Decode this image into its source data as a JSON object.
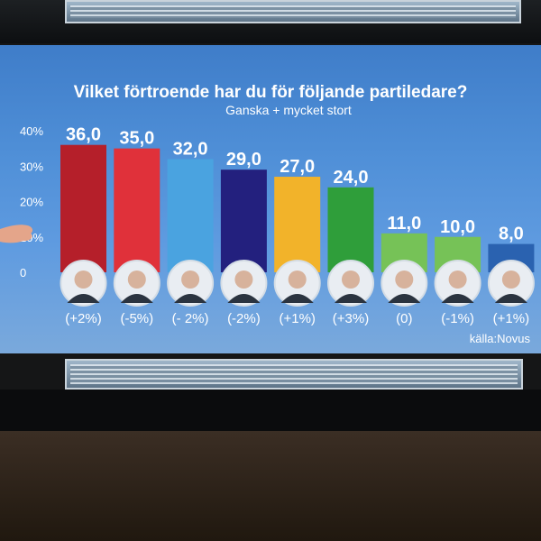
{
  "chart_data": {
    "type": "bar",
    "title": "Vilket förtroende har du för följande partiledare?",
    "subtitle": "Ganska + mycket stort",
    "values": [
      36.0,
      35.0,
      32.0,
      29.0,
      27.0,
      24.0,
      11.0,
      10.0,
      8.0
    ],
    "value_labels": [
      "36,0",
      "35,0",
      "32,0",
      "29,0",
      "27,0",
      "24,0",
      "11,0",
      "10,0",
      "8,0"
    ],
    "changes": [
      "(+2%)",
      "(-5%)",
      "(- 2%)",
      "(-2%)",
      "(+1%)",
      "(+3%)",
      "(0)",
      "(-1%)",
      "(+1%)"
    ],
    "colors": [
      "#b51f2a",
      "#e0313a",
      "#4aa3e0",
      "#23207e",
      "#f2b32a",
      "#2f9e3a",
      "#76c257",
      "#76c257",
      "#2a62b0"
    ],
    "y_ticks": [
      "40%",
      "30%",
      "20%",
      "10%",
      "0"
    ],
    "ylim": [
      0,
      40
    ],
    "grid": false,
    "source": "källa:Novus"
  }
}
